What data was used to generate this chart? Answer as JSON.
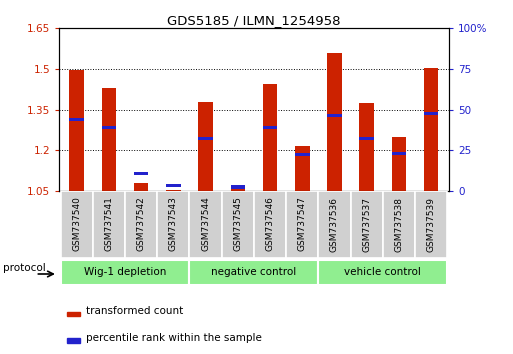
{
  "title": "GDS5185 / ILMN_1254958",
  "samples": [
    "GSM737540",
    "GSM737541",
    "GSM737542",
    "GSM737543",
    "GSM737544",
    "GSM737545",
    "GSM737546",
    "GSM737547",
    "GSM737536",
    "GSM737537",
    "GSM737538",
    "GSM737539"
  ],
  "red_values": [
    1.495,
    1.43,
    1.08,
    1.055,
    1.38,
    1.07,
    1.445,
    1.215,
    1.56,
    1.375,
    1.25,
    1.505
  ],
  "blue_values": [
    1.315,
    1.285,
    1.115,
    1.07,
    1.245,
    1.065,
    1.285,
    1.185,
    1.33,
    1.245,
    1.19,
    1.335
  ],
  "ylim_left": [
    1.05,
    1.65
  ],
  "ylim_right": [
    0,
    100
  ],
  "yticks_left": [
    1.05,
    1.2,
    1.35,
    1.5,
    1.65
  ],
  "yticks_left_labels": [
    "1.05",
    "1.2",
    "1.35",
    "1.5",
    "1.65"
  ],
  "yticks_right": [
    0,
    25,
    50,
    75,
    100
  ],
  "yticks_right_labels": [
    "0",
    "25",
    "50",
    "75",
    "100%"
  ],
  "groups": [
    {
      "label": "Wig-1 depletion",
      "start": 0,
      "end": 4
    },
    {
      "label": "negative control",
      "start": 4,
      "end": 8
    },
    {
      "label": "vehicle control",
      "start": 8,
      "end": 12
    }
  ],
  "group_color": "#90EE90",
  "bar_color": "#CC2200",
  "blue_color": "#2222CC",
  "base_value": 1.05,
  "bar_width": 0.45,
  "protocol_label": "protocol",
  "legend_red": "transformed count",
  "legend_blue": "percentile rank within the sample",
  "tick_label_color_left": "#CC2200",
  "tick_label_color_right": "#2222CC",
  "sample_box_color": "#d0d0d0"
}
